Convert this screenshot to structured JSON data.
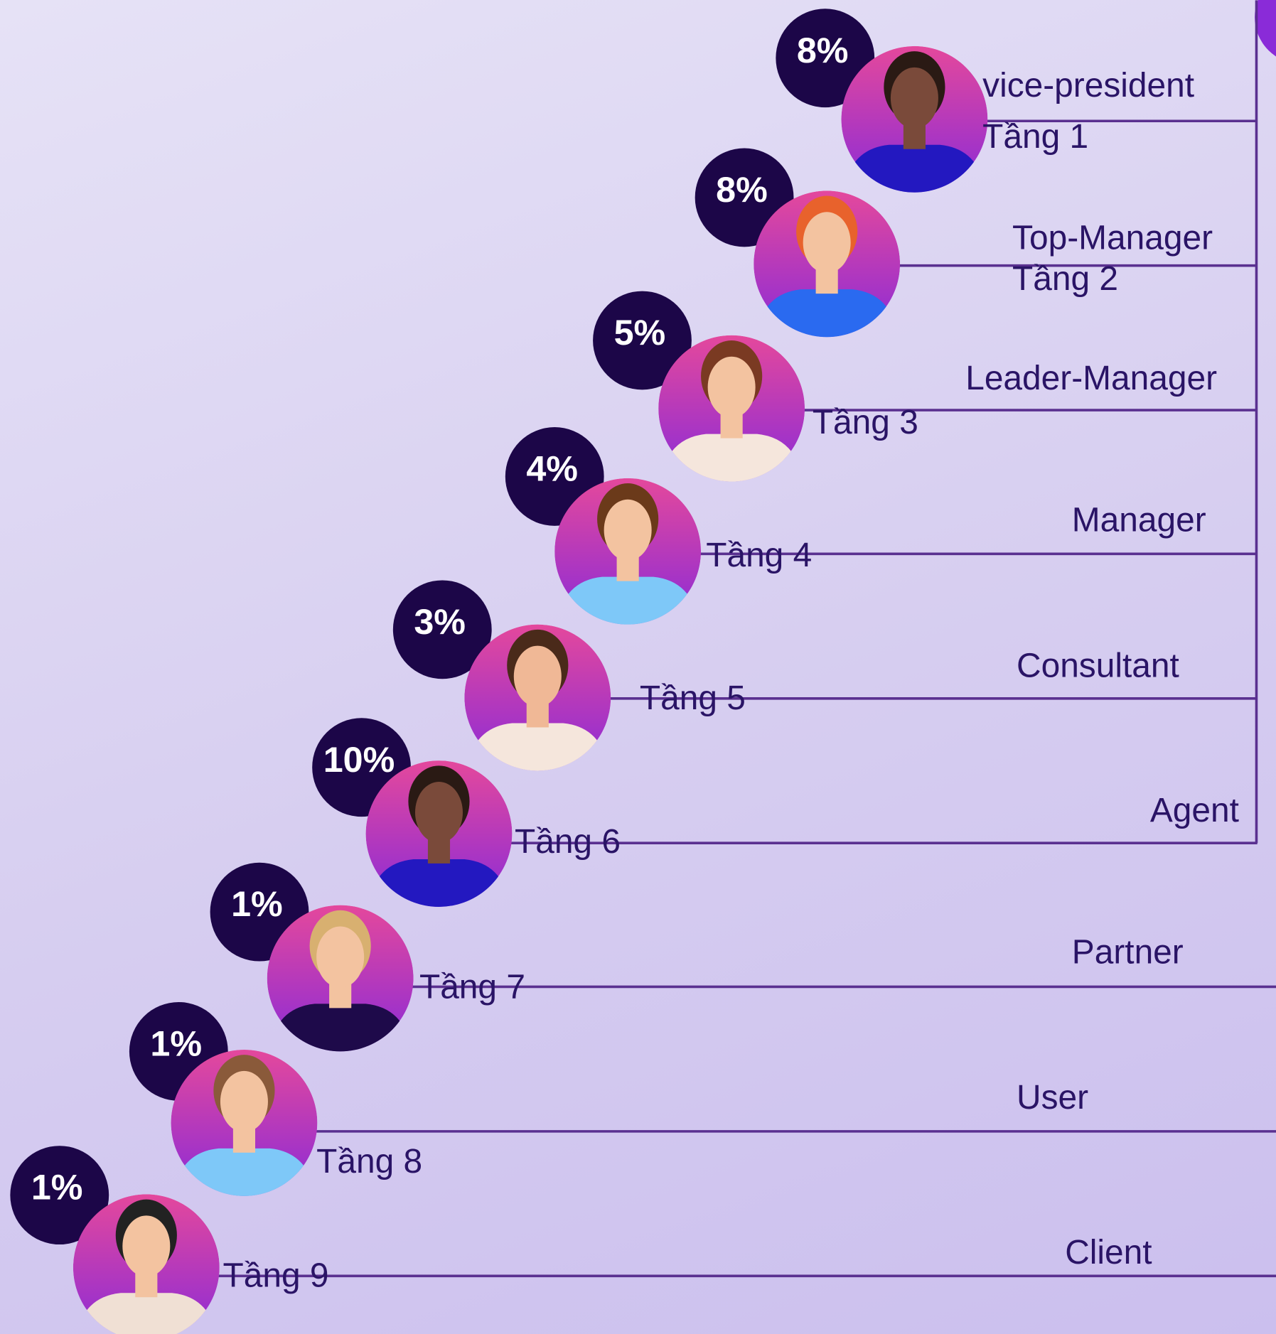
{
  "levels": [
    {
      "percent": "8%",
      "role": "vice-president",
      "tier": "Tầng 1"
    },
    {
      "percent": "8%",
      "role": "Top-Manager",
      "tier": "Tầng 2"
    },
    {
      "percent": "5%",
      "role": "Leader-Manager",
      "tier": "Tầng 3"
    },
    {
      "percent": "4%",
      "role": "Manager",
      "tier": "Tầng 4"
    },
    {
      "percent": "3%",
      "role": "Consultant",
      "tier": "Tầng 5"
    },
    {
      "percent": "10%",
      "role": "Agent",
      "tier": "Tầng 6"
    },
    {
      "percent": "1%",
      "role": "Partner",
      "tier": "Tầng 7"
    },
    {
      "percent": "1%",
      "role": "User",
      "tier": "Tầng 8"
    },
    {
      "percent": "1%",
      "role": "Client",
      "tier": "Tầng 9"
    }
  ]
}
